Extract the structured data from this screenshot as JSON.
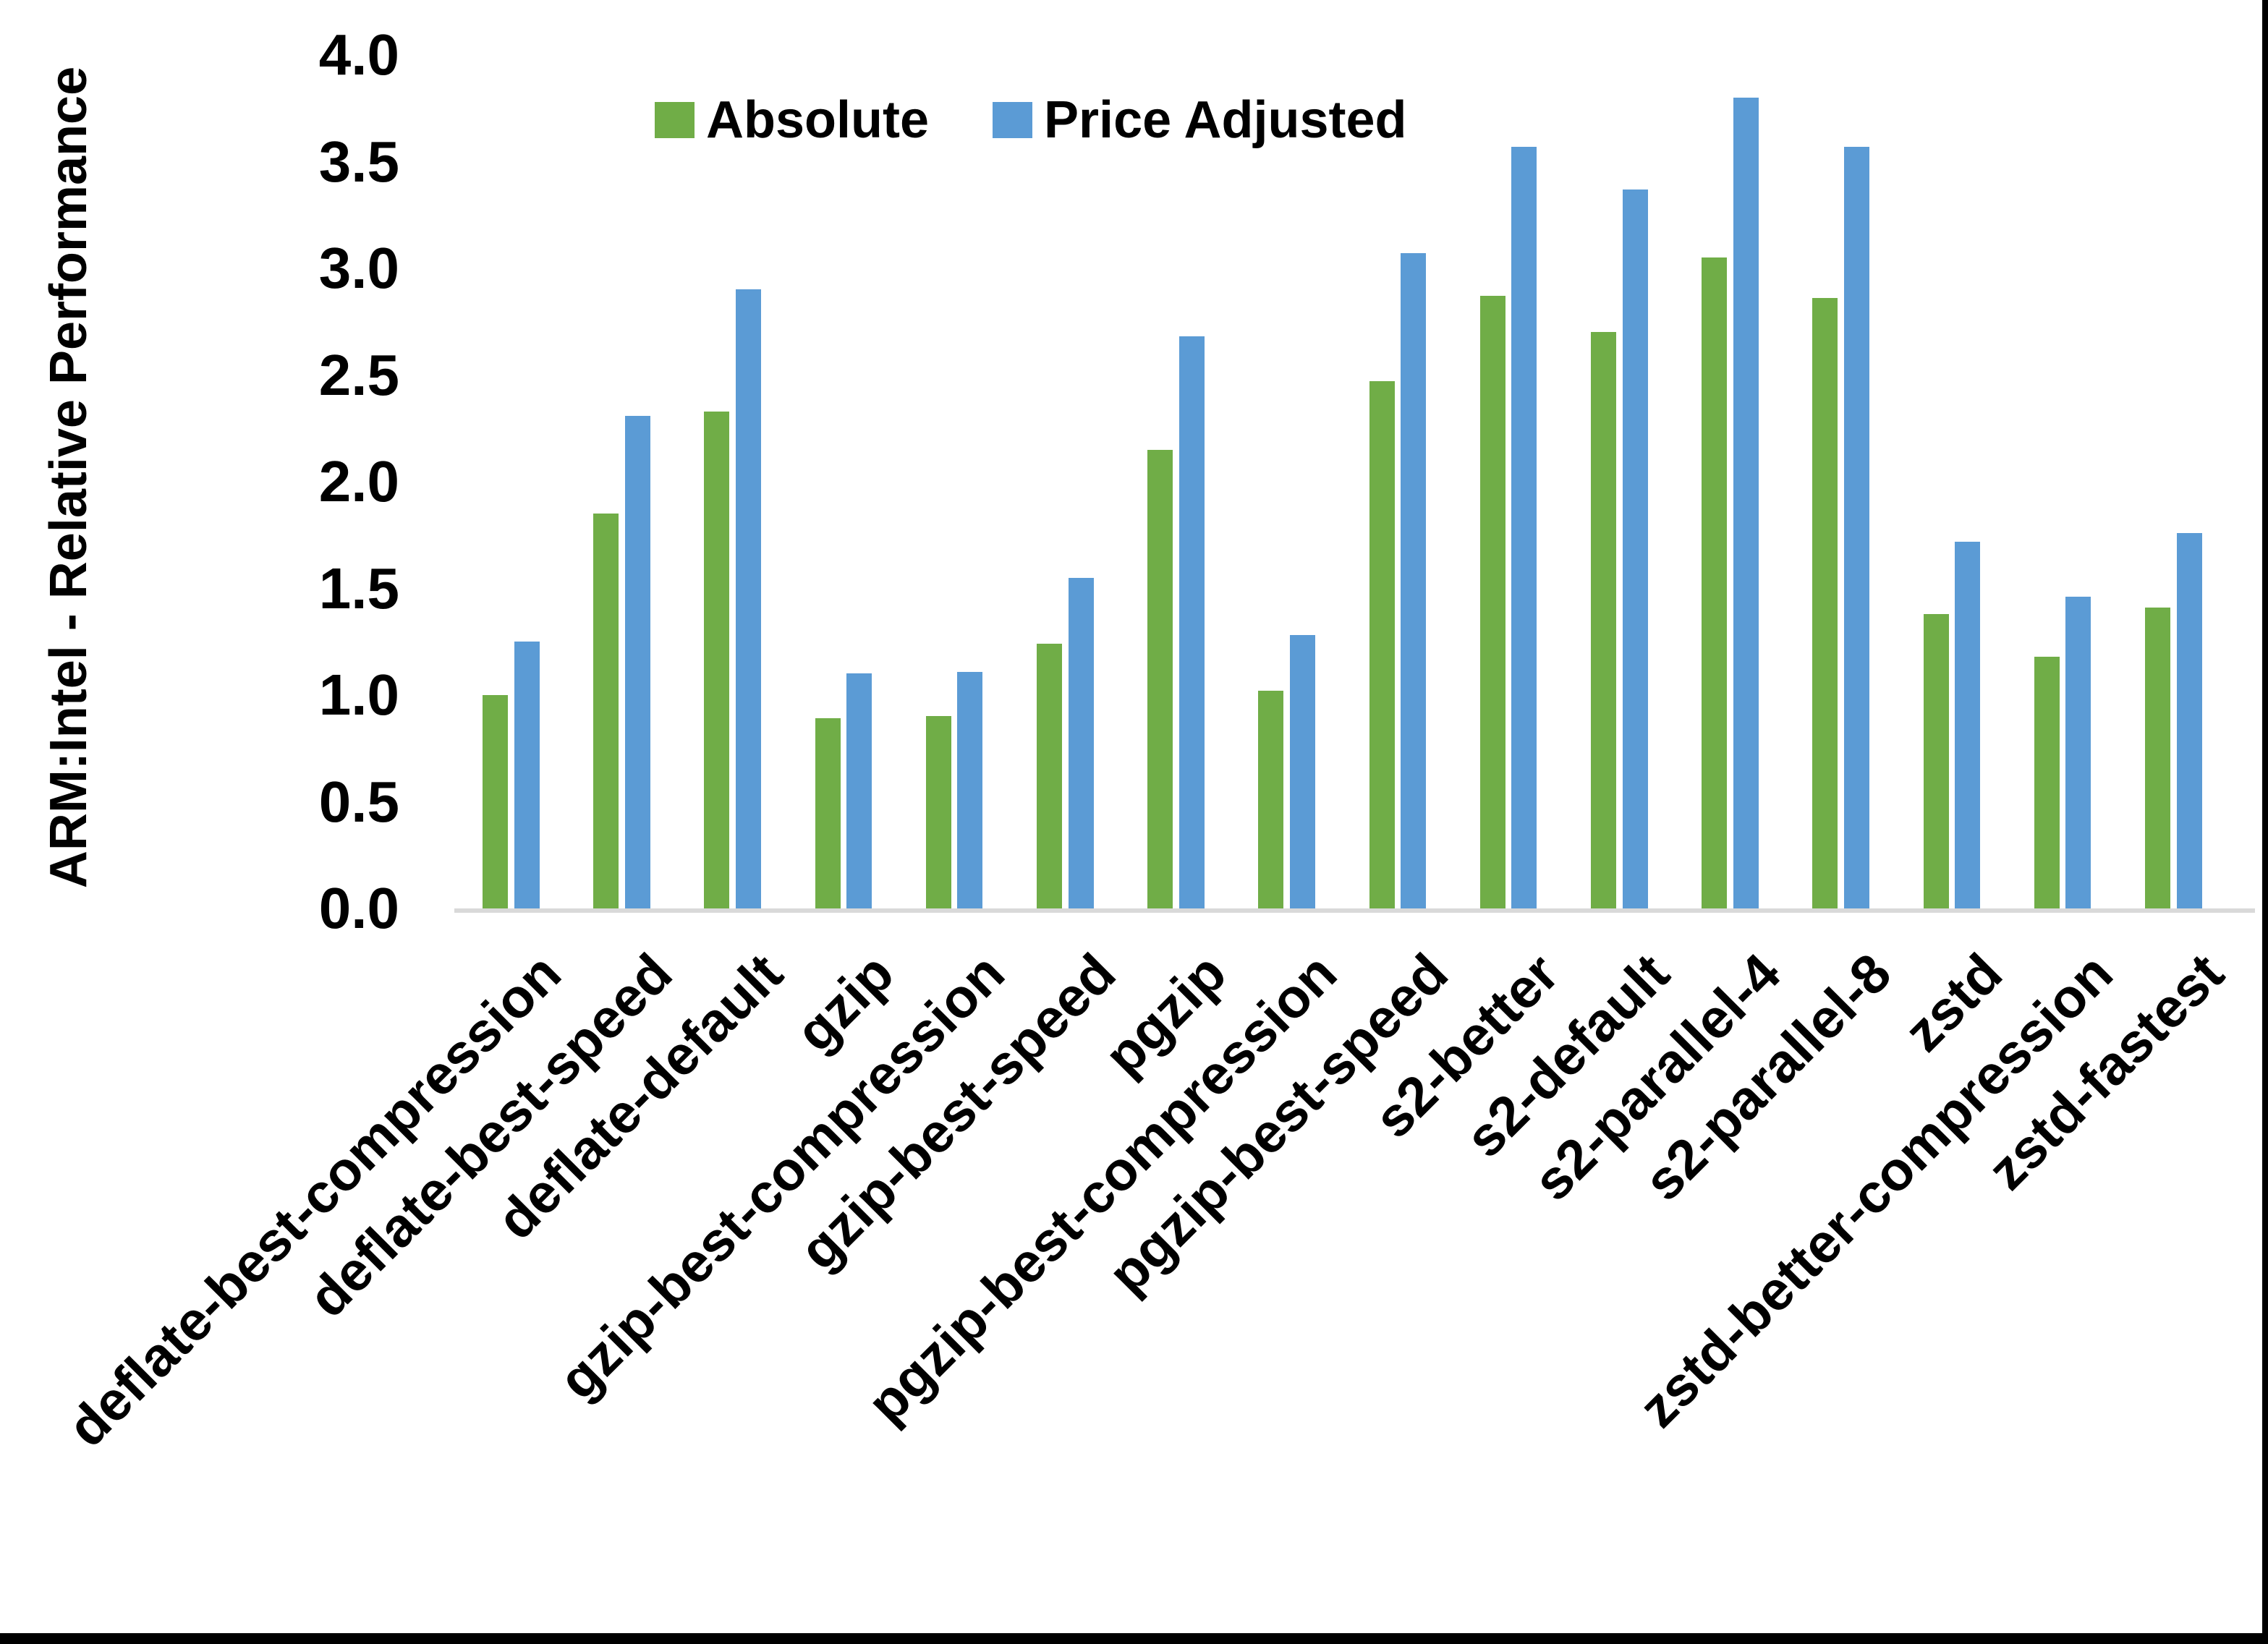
{
  "chart_data": {
    "type": "bar",
    "title": "",
    "xlabel": "",
    "ylabel": "ARM:Intel - Relative Performance",
    "ylim": [
      0.0,
      4.0
    ],
    "ytick_step": 0.5,
    "ytick_labels": [
      "0.0",
      "0.5",
      "1.0",
      "1.5",
      "2.0",
      "2.5",
      "3.0",
      "3.5",
      "4.0"
    ],
    "grid": false,
    "legend_position": "top-center",
    "categories": [
      "deflate-best-compression",
      "deflate-best-speed",
      "deflate-default",
      "gzip",
      "gzip-best-compression",
      "gzip-best-speed",
      "pgzip",
      "pgzip-best-compression",
      "pgzip-best-speed",
      "s2-better",
      "s2-default",
      "s2-parallel-4",
      "s2-parallel-8",
      "zstd",
      "zstd-better-compression",
      "zstd-fastest"
    ],
    "series": [
      {
        "name": "Absolute",
        "color": "#70AD47",
        "values": [
          1.0,
          1.85,
          2.33,
          0.89,
          0.9,
          1.24,
          2.15,
          1.02,
          2.47,
          2.87,
          2.7,
          3.05,
          2.86,
          1.38,
          1.18,
          1.41
        ]
      },
      {
        "name": "Price Adjusted",
        "color": "#5B9BD5",
        "values": [
          1.25,
          2.31,
          2.9,
          1.1,
          1.11,
          1.55,
          2.68,
          1.28,
          3.07,
          3.57,
          3.37,
          3.8,
          3.57,
          1.72,
          1.46,
          1.76
        ]
      }
    ]
  },
  "colors": {
    "background": "#FFFFFF",
    "axis_line": "#D9D9D9",
    "text": "#000000",
    "frame": "#000000"
  }
}
